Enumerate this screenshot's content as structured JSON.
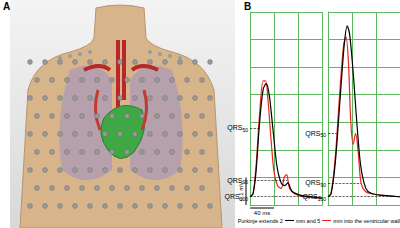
{
  "panel_labels": [
    "A",
    "B"
  ],
  "chart_data": [
    {
      "type": "line",
      "xlim": [
        0,
        120
      ],
      "xticks": [
        0,
        40,
        80,
        120
      ],
      "ylim": [
        0,
        0.7
      ],
      "yticks": [
        0,
        0.1,
        0.2,
        0.3,
        0.4,
        0.5,
        0.6,
        0.7
      ],
      "grid": true,
      "tick_labels": false,
      "series": [
        {
          "color": "#000000",
          "x": [
            0,
            5,
            10,
            16,
            22,
            27,
            32,
            38,
            45,
            52,
            58,
            63,
            70,
            85,
            100,
            120
          ],
          "values": [
            0.03,
            0.04,
            0.12,
            0.3,
            0.42,
            0.44,
            0.4,
            0.28,
            0.14,
            0.08,
            0.07,
            0.08,
            0.05,
            0.035,
            0.03,
            0.025
          ]
        },
        {
          "color": "#e8281e",
          "x": [
            0,
            5,
            10,
            16,
            22,
            26,
            30,
            35,
            40,
            46,
            52,
            57,
            61,
            66,
            75,
            90,
            120
          ],
          "values": [
            0.03,
            0.04,
            0.14,
            0.33,
            0.45,
            0.45,
            0.38,
            0.24,
            0.12,
            0.07,
            0.06,
            0.1,
            0.11,
            0.06,
            0.04,
            0.03,
            0.025
          ]
        }
      ],
      "annotations": [
        {
          "text": "QRS50",
          "x": 17,
          "y": 0.28
        },
        {
          "text": "QRS90",
          "x": 62,
          "y": 0.09
        },
        {
          "text": "QRS100",
          "x": 120,
          "y": 0.03
        }
      ]
    },
    {
      "type": "line",
      "xlim": [
        0,
        120
      ],
      "xticks": [
        0,
        40,
        80,
        120
      ],
      "ylim": [
        0,
        0.7
      ],
      "yticks": [
        0,
        0.1,
        0.2,
        0.3,
        0.4,
        0.5,
        0.6,
        0.7
      ],
      "grid": true,
      "tick_labels": false,
      "series": [
        {
          "color": "#000000",
          "x": [
            0,
            5,
            12,
            20,
            27,
            32,
            36,
            42,
            48,
            54,
            60,
            66,
            75,
            90,
            120
          ],
          "values": [
            0.03,
            0.04,
            0.15,
            0.38,
            0.58,
            0.65,
            0.62,
            0.48,
            0.3,
            0.15,
            0.08,
            0.05,
            0.04,
            0.035,
            0.03
          ]
        },
        {
          "color": "#e8281e",
          "x": [
            0,
            5,
            12,
            20,
            26,
            30,
            34,
            38,
            42,
            46,
            50,
            55,
            62,
            75,
            120
          ],
          "values": [
            0.03,
            0.04,
            0.17,
            0.42,
            0.58,
            0.61,
            0.52,
            0.3,
            0.22,
            0.26,
            0.2,
            0.08,
            0.05,
            0.04,
            0.03
          ]
        }
      ],
      "annotations": [
        {
          "text": "QRS50",
          "x": 18,
          "y": 0.26
        },
        {
          "text": "QRS90",
          "x": 55,
          "y": 0.08
        },
        {
          "text": "QRS100",
          "x": 120,
          "y": 0.03
        }
      ]
    }
  ],
  "scale_bars": [
    {
      "label": "40 ms",
      "value": 40,
      "axis": "x"
    },
    {
      "label": "0.1 mV",
      "value": 0.1,
      "axis": "y"
    }
  ],
  "key_text": [
    "Purkinje extends 2",
    "mm and 5",
    "mm into the ventricular wall"
  ]
}
